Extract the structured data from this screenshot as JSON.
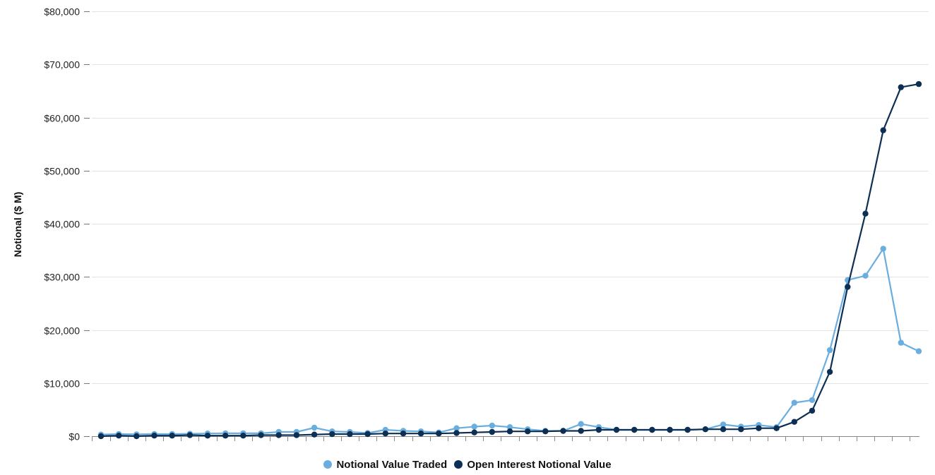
{
  "chart_data": {
    "type": "line",
    "ylabel": "Notional ($ M)",
    "xlabel": "",
    "ylim": [
      0,
      80000
    ],
    "y_ticks": [
      0,
      10000,
      20000,
      30000,
      40000,
      50000,
      60000,
      70000,
      80000
    ],
    "y_tick_labels": [
      "$0",
      "$10,000",
      "$20,000",
      "$30,000",
      "$40,000",
      "$50,000",
      "$60,000",
      "$70,000",
      "$80,000"
    ],
    "x_tick_labels_shown": false,
    "grid": true,
    "legend_position": "bottom",
    "series": [
      {
        "name": "Notional Value Traded",
        "color": "#6aaee0",
        "values": [
          300,
          400,
          350,
          400,
          400,
          450,
          500,
          550,
          550,
          550,
          800,
          800,
          1600,
          900,
          800,
          600,
          1200,
          1000,
          900,
          700,
          1500,
          1800,
          2000,
          1700,
          1300,
          1000,
          1000,
          2300,
          1700,
          1200,
          1200,
          1200,
          1200,
          1200,
          1300,
          2200,
          1800,
          2100,
          1700,
          6300,
          6800,
          16200,
          29400,
          30200,
          35300,
          17600,
          16000
        ]
      },
      {
        "name": "Open Interest Notional Value",
        "color": "#0d2f54",
        "values": [
          0,
          100,
          0,
          100,
          100,
          200,
          100,
          100,
          100,
          200,
          200,
          200,
          300,
          400,
          400,
          400,
          500,
          500,
          500,
          500,
          600,
          700,
          800,
          900,
          900,
          900,
          1000,
          1000,
          1200,
          1200,
          1200,
          1200,
          1200,
          1200,
          1300,
          1300,
          1300,
          1500,
          1500,
          2700,
          4800,
          12100,
          28100,
          41900,
          57600,
          65700,
          66300
        ]
      }
    ]
  }
}
